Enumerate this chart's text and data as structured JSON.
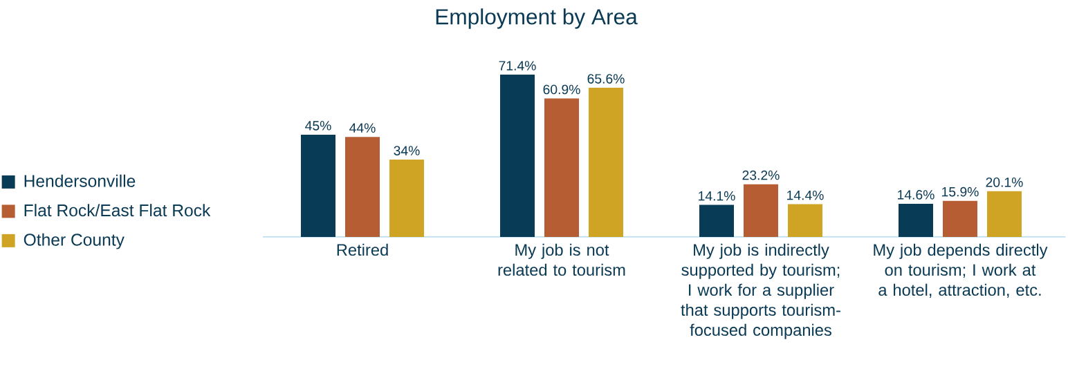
{
  "chart_data": {
    "type": "bar",
    "title": "Employment by Area",
    "categories": [
      "Retired",
      "My job is not related to tourism",
      "My job is indirectly supported by tourism; I work for a supplier that supports tourism-focused companies",
      "My job depends directly on tourism; I work at a hotel, attraction, etc."
    ],
    "series": [
      {
        "name": "Hendersonville",
        "color": "#073b56",
        "values": [
          45,
          71.4,
          14.1,
          14.6
        ],
        "value_labels": [
          "45%",
          "71.4%",
          "14.1%",
          "14.6%"
        ]
      },
      {
        "name": "Flat Rock/East Flat Rock",
        "color": "#b65d34",
        "values": [
          44,
          60.9,
          23.2,
          15.9
        ],
        "value_labels": [
          "44%",
          "60.9%",
          "23.2%",
          "15.9%"
        ]
      },
      {
        "name": "Other County",
        "color": "#cfa424",
        "values": [
          34,
          65.6,
          14.4,
          20.1
        ],
        "value_labels": [
          "34%",
          "65.6%",
          "14.4%",
          "20.1%"
        ]
      }
    ],
    "legend": "left"
  }
}
